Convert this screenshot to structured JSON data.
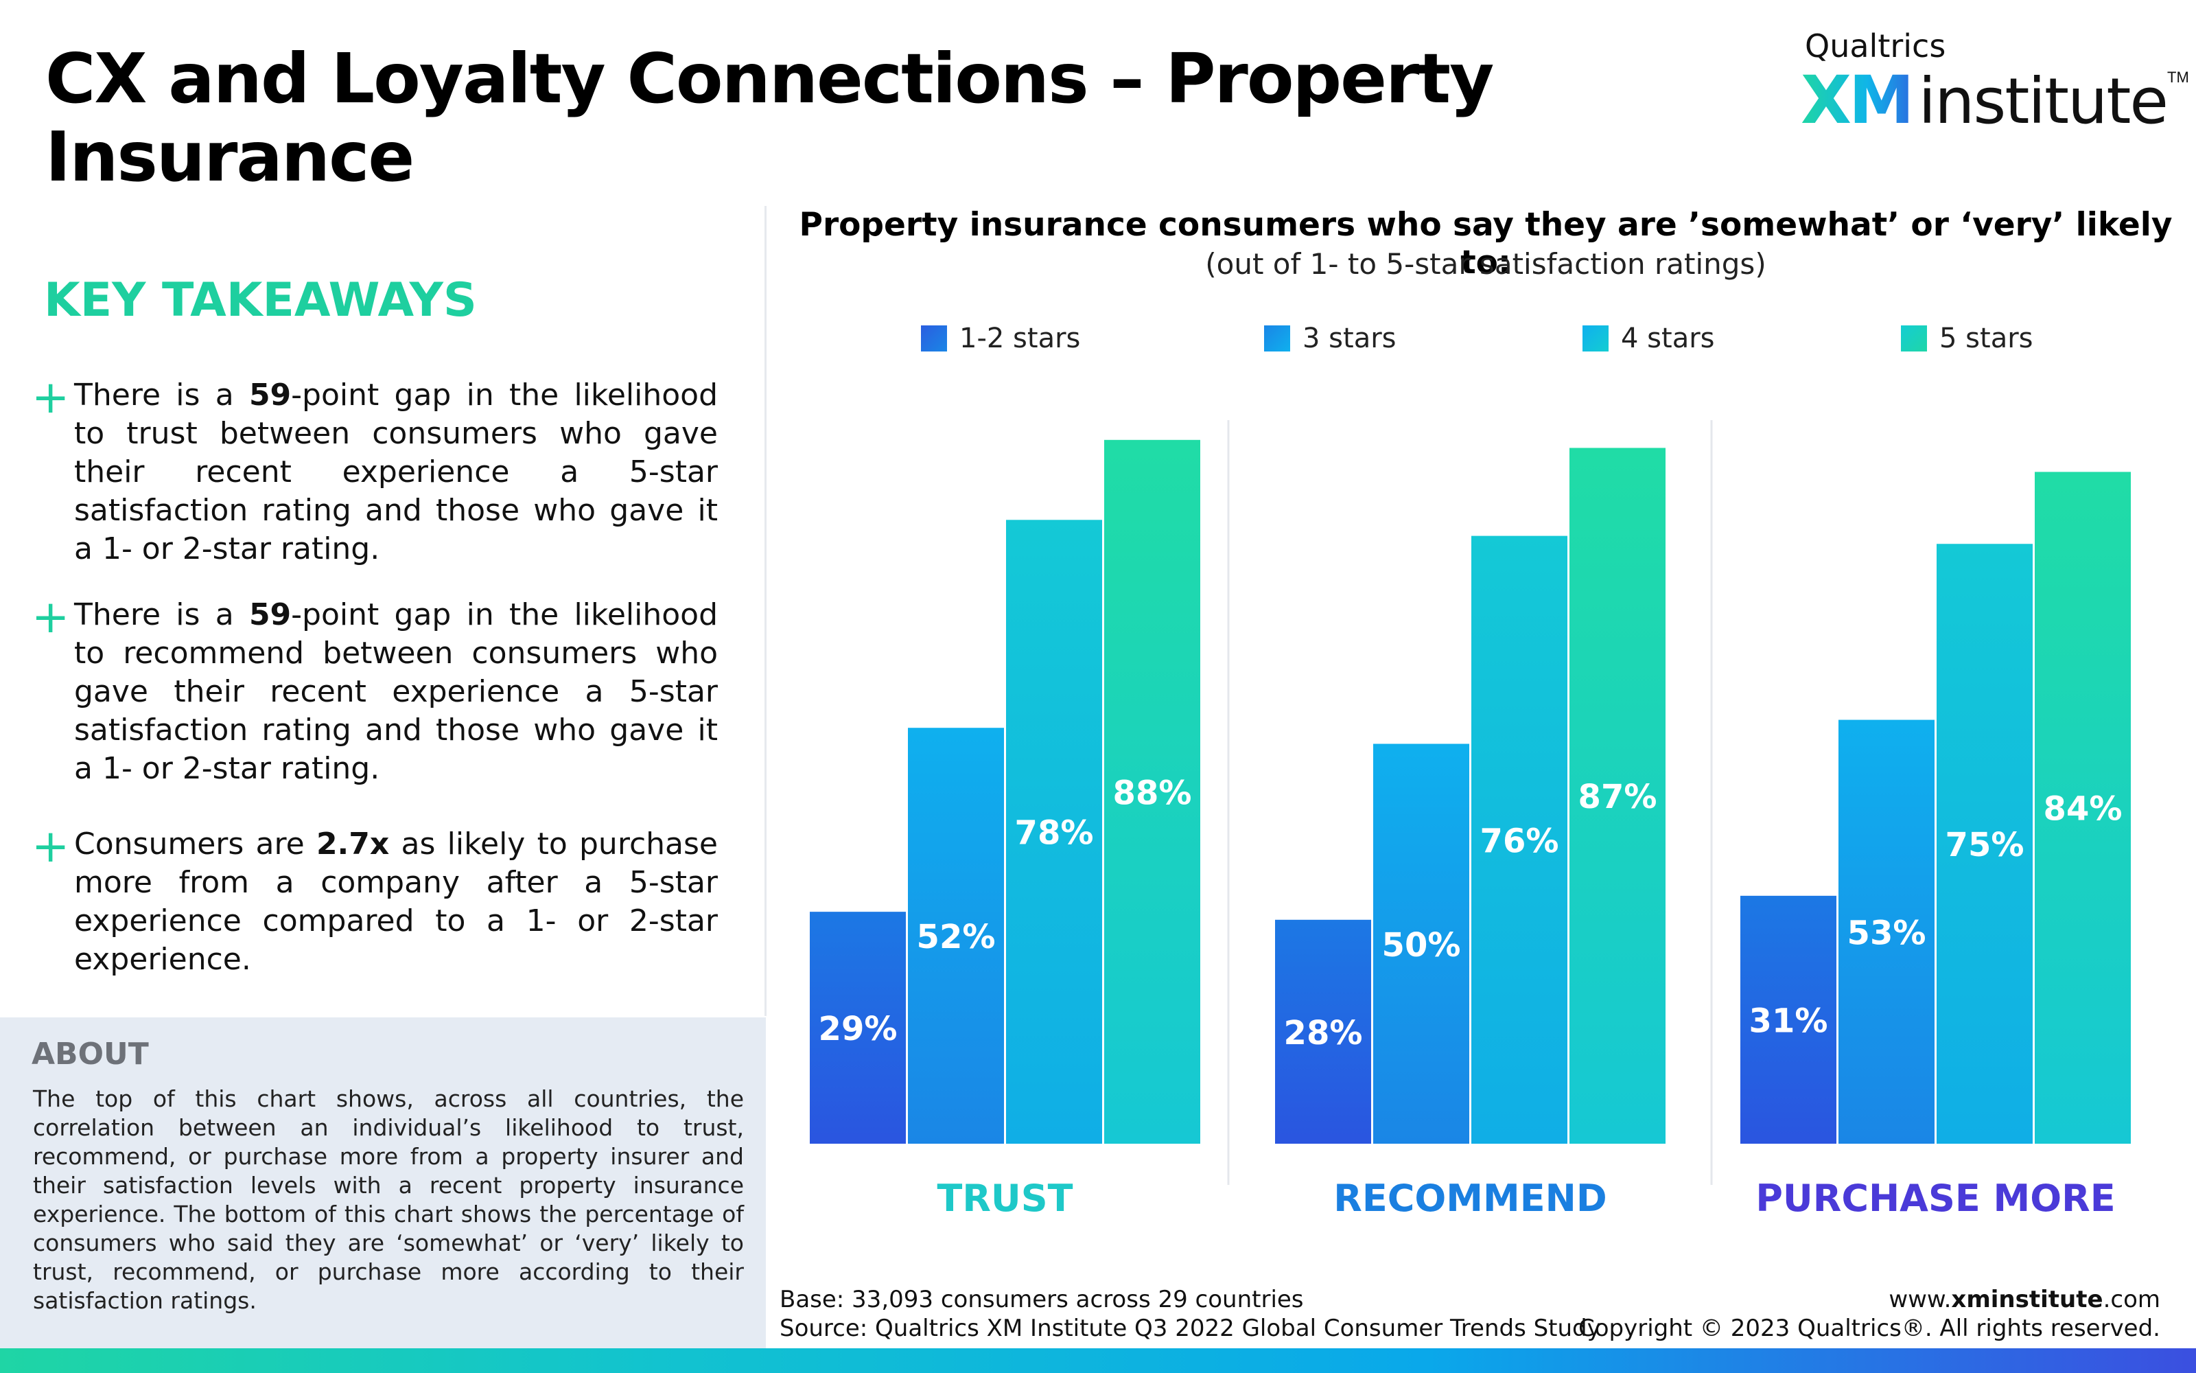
{
  "title": "CX and Loyalty Connections – Property Insurance",
  "logo": {
    "small": "Qualtrics",
    "xm": "XM",
    "institute": "institute",
    "tm": "TM"
  },
  "key_takeaways": {
    "heading": "KEY TAKEAWAYS",
    "items": [
      {
        "pre": "There is a ",
        "bold": "59",
        "post": "-point gap in the likelihood to trust between consumers who gave their recent experience a 5-star satisfaction rating and those who gave it a 1- or 2-star rating."
      },
      {
        "pre": "There is a  ",
        "bold": "59",
        "post": "-point gap in the likelihood to recommend between consumers who gave their recent experience a 5-star satisfaction rating and those who gave it a 1- or 2-star rating."
      },
      {
        "pre": "Consumers are ",
        "bold": "2.7x",
        "post": " as likely to purchase more from a company after a 5-star experience compared to a 1- or 2-star experience."
      }
    ]
  },
  "about": {
    "title": "ABOUT",
    "text": "The top of this chart shows, across all countries, the correlation between an individual’s likelihood to trust, recommend, or purchase more from a property insurer and their satisfaction levels with a recent property insurance experience. The bottom of this chart shows the percentage of consumers who said they are ‘somewhat’ or ‘very’ likely to trust, recommend, or purchase more according to their satisfaction ratings."
  },
  "colors": {
    "accent_green": "#1ecf9f",
    "trust_label": "#1ec8c8",
    "recommend_label": "#1a7fe0",
    "purchase_label": "#4a3ad8",
    "series": [
      "#2a5ee0",
      "#0fa6ec",
      "#12c0dc",
      "#1fd6a8"
    ]
  },
  "chart_data": {
    "type": "bar",
    "title": "Property insurance consumers who say they are ’somewhat’ or ‘very’ likely to:",
    "subtitle": "(out of 1- to 5-star satisfaction ratings)",
    "categories": [
      "TRUST",
      "RECOMMEND",
      "PURCHASE MORE"
    ],
    "series": [
      {
        "name": "1-2 stars",
        "values": [
          29,
          28,
          31
        ]
      },
      {
        "name": "3 stars",
        "values": [
          52,
          50,
          53
        ]
      },
      {
        "name": "4 stars",
        "values": [
          78,
          76,
          75
        ]
      },
      {
        "name": "5 stars",
        "values": [
          88,
          87,
          84
        ]
      }
    ],
    "value_suffix": "%",
    "ylim": [
      0,
      100
    ],
    "grid": false,
    "legend_position": "top"
  },
  "footer": {
    "base": "Base: 33,093 consumers across 29 countries",
    "source": "Source: Qualtrics XM Institute Q3 2022 Global Consumer Trends Study",
    "url_pre": "www.",
    "url_bold": "xminstitute",
    "url_post": ".com",
    "copyright": "Copyright © 2023 Qualtrics®. All rights reserved."
  }
}
